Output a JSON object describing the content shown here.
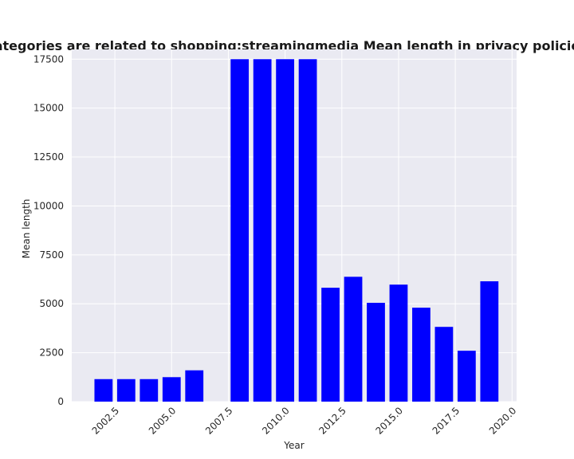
{
  "chart_data": {
    "type": "bar",
    "title": "when categories are related to shopping;streamingmedia Mean length in privacy policies by Ye",
    "xlabel": "Year",
    "ylabel": "Mean length",
    "x": [
      2002,
      2003,
      2004,
      2005,
      2006,
      2008,
      2009,
      2010,
      2011,
      2012,
      2013,
      2014,
      2015,
      2016,
      2017,
      2018,
      2019
    ],
    "values": [
      1150,
      1150,
      1150,
      1250,
      1600,
      17500,
      17500,
      17500,
      17500,
      5820,
      6380,
      5050,
      5980,
      4800,
      3820,
      2600,
      6150
    ],
    "xlim": [
      2000.6,
      2020.2
    ],
    "ylim": [
      0,
      18000
    ],
    "xticks": [
      2002.5,
      2005.0,
      2007.5,
      2010.0,
      2012.5,
      2015.0,
      2017.5,
      2020.0
    ],
    "xtick_labels": [
      "2002.5",
      "2005.0",
      "2007.5",
      "2010.0",
      "2012.5",
      "2015.0",
      "2017.5",
      "2020.0"
    ],
    "yticks": [
      0,
      2500,
      5000,
      7500,
      10000,
      12500,
      15000,
      17500
    ],
    "ytick_labels": [
      "0",
      "2500",
      "5000",
      "7500",
      "10000",
      "12500",
      "15000",
      "17500"
    ],
    "grid": true,
    "bar_color": "#0000ff",
    "background_color": "#eaeaf2",
    "grid_color": "#ffffff"
  }
}
